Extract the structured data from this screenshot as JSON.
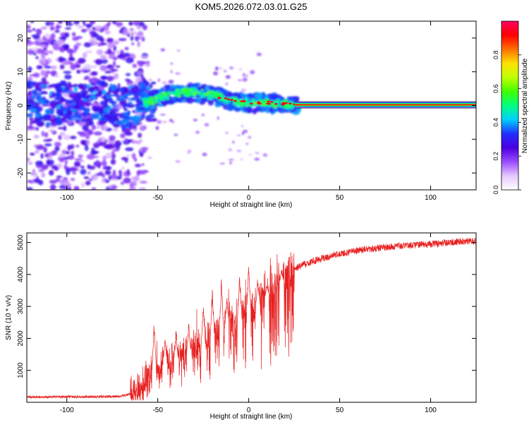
{
  "figure": {
    "title": "KOM5.2026.072.03.01.G25"
  },
  "chart_data": [
    {
      "type": "heatmap",
      "xlabel": "Height of straight line (km)",
      "ylabel": "Frequency (Hz)",
      "xlim": [
        -122,
        125
      ],
      "ylim": [
        -25,
        25
      ],
      "x_ticks": [
        -100,
        -50,
        0,
        50,
        100
      ],
      "y_ticks": [
        -20,
        -10,
        0,
        10,
        20
      ],
      "ridge": [
        {
          "x": -122,
          "y": 1
        },
        {
          "x": -110,
          "y": 0
        },
        {
          "x": -100,
          "y": 1
        },
        {
          "x": -90,
          "y": 0
        },
        {
          "x": -80,
          "y": 1
        },
        {
          "x": -70,
          "y": -1
        },
        {
          "x": -65,
          "y": 0
        },
        {
          "x": -60,
          "y": 1
        },
        {
          "x": -55,
          "y": 1
        },
        {
          "x": -50,
          "y": 2
        },
        {
          "x": -45,
          "y": 3
        },
        {
          "x": -40,
          "y": 3.5
        },
        {
          "x": -35,
          "y": 4
        },
        {
          "x": -30,
          "y": 4
        },
        {
          "x": -25,
          "y": 3.5
        },
        {
          "x": -20,
          "y": 3
        },
        {
          "x": -15,
          "y": 2.5
        },
        {
          "x": -10,
          "y": 1.5
        },
        {
          "x": -5,
          "y": 1
        },
        {
          "x": 0,
          "y": 0.8
        },
        {
          "x": 10,
          "y": 0.8
        },
        {
          "x": 20,
          "y": 0.5
        },
        {
          "x": 25,
          "y": 0.2
        },
        {
          "x": 50,
          "y": 0.2
        },
        {
          "x": 100,
          "y": 0.2
        },
        {
          "x": 125,
          "y": 0.2
        }
      ],
      "steady_line": {
        "x_start": 25,
        "x_end": 125,
        "y": 0.2
      },
      "colorbar": {
        "label": "Normalized spectral amplitude",
        "range": [
          0,
          1
        ],
        "ticks": [
          "0.0",
          "0.2",
          "0.4",
          "0.6",
          "0.8"
        ],
        "colors": [
          "#ffffff",
          "#e6c8ff",
          "#9a4bff",
          "#4a00e0",
          "#2030ff",
          "#00d0ff",
          "#00ff80",
          "#40ff00",
          "#c0ff00",
          "#ffe000",
          "#ff7000",
          "#ff0000",
          "#ff0060"
        ]
      }
    },
    {
      "type": "line",
      "xlabel": "Height of straight line (km)",
      "ylabel": "SNR (10 * v/v)",
      "xlim": [
        -122,
        125
      ],
      "ylim": [
        0,
        5300
      ],
      "x_ticks": [
        -100,
        -50,
        0,
        50,
        100
      ],
      "y_ticks": [
        1000,
        2000,
        3000,
        4000,
        5000
      ],
      "color": "#e82020",
      "envelope": [
        {
          "x": -122,
          "y": 170
        },
        {
          "x": -100,
          "y": 170
        },
        {
          "x": -80,
          "y": 175
        },
        {
          "x": -70,
          "y": 190
        },
        {
          "x": -65,
          "y": 260
        },
        {
          "x": -60,
          "y": 450
        },
        {
          "x": -55,
          "y": 800
        },
        {
          "x": -50,
          "y": 1100
        },
        {
          "x": -45,
          "y": 1200
        },
        {
          "x": -40,
          "y": 1300
        },
        {
          "x": -35,
          "y": 1500
        },
        {
          "x": -30,
          "y": 1600
        },
        {
          "x": -25,
          "y": 1750
        },
        {
          "x": -20,
          "y": 2000
        },
        {
          "x": -15,
          "y": 2250
        },
        {
          "x": -10,
          "y": 2450
        },
        {
          "x": -5,
          "y": 2650
        },
        {
          "x": 0,
          "y": 2850
        },
        {
          "x": 5,
          "y": 3100
        },
        {
          "x": 10,
          "y": 3300
        },
        {
          "x": 15,
          "y": 3600
        },
        {
          "x": 20,
          "y": 3850
        },
        {
          "x": 25,
          "y": 4150
        },
        {
          "x": 30,
          "y": 4300
        },
        {
          "x": 40,
          "y": 4500
        },
        {
          "x": 50,
          "y": 4650
        },
        {
          "x": 60,
          "y": 4750
        },
        {
          "x": 75,
          "y": 4850
        },
        {
          "x": 90,
          "y": 4920
        },
        {
          "x": 100,
          "y": 4950
        },
        {
          "x": 110,
          "y": 5000
        },
        {
          "x": 125,
          "y": 5050
        }
      ],
      "spikes": [
        {
          "x": -52,
          "y": 2600
        },
        {
          "x": -46,
          "y": 2100
        },
        {
          "x": -40,
          "y": 2300
        },
        {
          "x": -33,
          "y": 2500
        },
        {
          "x": -25,
          "y": 3200
        },
        {
          "x": -20,
          "y": 3700
        },
        {
          "x": -15,
          "y": 3900
        },
        {
          "x": -12,
          "y": 3300
        },
        {
          "x": -5,
          "y": 4100
        },
        {
          "x": 0,
          "y": 4400
        },
        {
          "x": 5,
          "y": 3800
        },
        {
          "x": 10,
          "y": 3700
        },
        {
          "x": 18,
          "y": 4150
        }
      ]
    }
  ]
}
